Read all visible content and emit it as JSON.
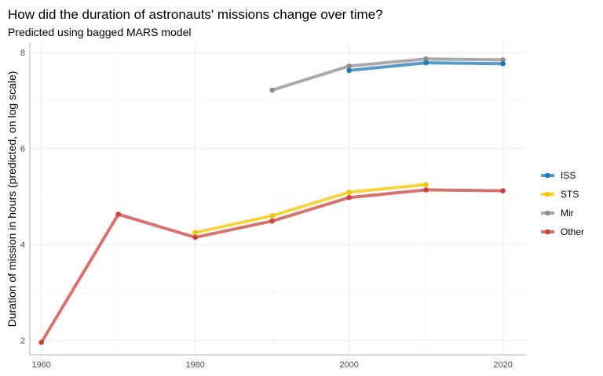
{
  "chart_data": {
    "type": "line",
    "title": "How did the duration of astronauts' missions change over time?",
    "subtitle": "Predicted using bagged MARS model",
    "xlabel": "",
    "ylabel": "Duration of mission in hours (predicted, on log scale)",
    "xlim": [
      1958.5,
      2023
    ],
    "ylim": [
      1.7,
      8.2
    ],
    "xticks": [
      1960,
      1980,
      2000,
      2020
    ],
    "yticks": [
      2,
      4,
      6,
      8
    ],
    "grid": true,
    "legend_position": "right",
    "series": [
      {
        "name": "ISS",
        "color": "#1f78b4",
        "x": [
          2000,
          2010,
          2020
        ],
        "y": [
          7.63,
          7.79,
          7.77
        ]
      },
      {
        "name": "STS",
        "color": "#f2c500",
        "x": [
          1980,
          1990,
          2000,
          2010
        ],
        "y": [
          4.25,
          4.6,
          5.09,
          5.25
        ]
      },
      {
        "name": "Mir",
        "color": "#8c8c8c",
        "x": [
          1990,
          2000,
          2010,
          2020
        ],
        "y": [
          7.22,
          7.72,
          7.87,
          7.85
        ]
      },
      {
        "name": "Other",
        "color": "#c8443f",
        "x": [
          1960,
          1970,
          1980,
          1990,
          2000,
          2010,
          2020
        ],
        "y": [
          1.96,
          4.63,
          4.15,
          4.49,
          4.98,
          5.14,
          5.12
        ]
      }
    ]
  }
}
